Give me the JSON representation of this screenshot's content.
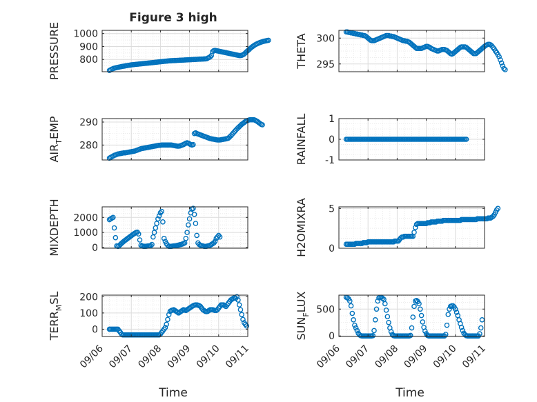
{
  "figure": {
    "title": "Figure 3 high",
    "xlabel": "Time",
    "marker_color": "#0072BD"
  },
  "chart_data": [
    {
      "type": "scatter",
      "panel": "left-1",
      "ylabel": {
        "main": "PRESSURE",
        "sub": "",
        "rest": ""
      },
      "yticks": [
        800,
        900,
        1000
      ],
      "ylim": [
        705,
        1025
      ],
      "xlim": [
        "2020-09-06",
        "2020-09-11"
      ],
      "x_start": "2020-09-06 06:00",
      "x_step_hours": 1,
      "series": [
        {
          "values": [
            715,
            720,
            725,
            729,
            732,
            735,
            737,
            739,
            741,
            743,
            745,
            747,
            748,
            750,
            752,
            753,
            755,
            756,
            758,
            759,
            760,
            761,
            762,
            763,
            764,
            765,
            766,
            767,
            768,
            769,
            770,
            771,
            772,
            773,
            774,
            775,
            776,
            777,
            778,
            779,
            780,
            781,
            782,
            783,
            784,
            785,
            786,
            787,
            788,
            789,
            790,
            790,
            791,
            791,
            792,
            792,
            793,
            793,
            794,
            794,
            795,
            795,
            796,
            796,
            797,
            797,
            798,
            798,
            799,
            799,
            800,
            800,
            801,
            801,
            802,
            802,
            803,
            803,
            804,
            804,
            805,
            810,
            815,
            820,
            830,
            860,
            868,
            870,
            868,
            866,
            864,
            862,
            860,
            858,
            856,
            854,
            852,
            850,
            848,
            846,
            844,
            842,
            840,
            838,
            836,
            834,
            832,
            830,
            830,
            832,
            836,
            842,
            850,
            860,
            868,
            876,
            885,
            893,
            900,
            907,
            913,
            918,
            923,
            927,
            931,
            934,
            937,
            940,
            942,
            944,
            946,
            948
          ]
        }
      ]
    },
    {
      "type": "scatter",
      "panel": "right-1",
      "ylabel": {
        "main": "THETA",
        "sub": "",
        "rest": ""
      },
      "yticks": [
        295,
        300
      ],
      "ylim": [
        293.5,
        301.5
      ],
      "xlim": [
        "2020-09-06",
        "2020-09-11"
      ],
      "x_start": "2020-09-06 06:00",
      "x_step_hours": 1,
      "series": [
        {
          "values": [
            301.2,
            301.2,
            301.1,
            301.1,
            301.0,
            301.0,
            300.9,
            300.9,
            300.8,
            300.8,
            300.7,
            300.7,
            300.6,
            300.6,
            300.5,
            300.5,
            300.4,
            300.2,
            300.0,
            299.8,
            299.6,
            299.5,
            299.5,
            299.5,
            299.6,
            299.7,
            299.8,
            299.9,
            300.0,
            300.1,
            300.2,
            300.3,
            300.4,
            300.5,
            300.5,
            300.5,
            300.4,
            300.4,
            300.3,
            300.3,
            300.2,
            300.1,
            300.0,
            299.9,
            299.8,
            299.7,
            299.6,
            299.5,
            299.5,
            299.4,
            299.4,
            299.3,
            299.2,
            299.0,
            298.8,
            298.6,
            298.4,
            298.2,
            298.0,
            298.0,
            298.0,
            298.0,
            298.0,
            298.1,
            298.2,
            298.3,
            298.4,
            298.4,
            298.3,
            298.2,
            298.0,
            297.9,
            297.8,
            297.7,
            297.6,
            297.5,
            297.5,
            297.6,
            297.7,
            297.8,
            297.8,
            297.8,
            297.7,
            297.6,
            297.4,
            297.2,
            297.0,
            296.9,
            297.0,
            297.2,
            297.4,
            297.6,
            297.8,
            298.0,
            298.2,
            298.3,
            298.3,
            298.3,
            298.3,
            298.2,
            298.0,
            297.8,
            297.6,
            297.4,
            297.2,
            297.0,
            297.0,
            297.0,
            297.2,
            297.4,
            297.6,
            297.8,
            298.0,
            298.2,
            298.4,
            298.6,
            298.7,
            298.8,
            298.8,
            298.7,
            298.5,
            298.2,
            297.9,
            297.5,
            297.2,
            296.8,
            296.4,
            295.8,
            295.2,
            294.6,
            294.1,
            293.9
          ]
        }
      ]
    },
    {
      "type": "scatter",
      "panel": "left-2",
      "ylabel": {
        "main": "AIR",
        "sub": "T",
        "rest": "EMP"
      },
      "yticks": [
        280,
        290
      ],
      "ylim": [
        273.5,
        291.5
      ],
      "xlim": [
        "2020-09-06",
        "2020-09-11"
      ],
      "x_start": "2020-09-06 06:00",
      "x_step_hours": 1,
      "series": [
        {
          "values": [
            274.3,
            274.6,
            274.9,
            275.2,
            275.5,
            275.7,
            275.9,
            276.1,
            276.2,
            276.3,
            276.4,
            276.5,
            276.6,
            276.6,
            276.7,
            276.8,
            276.9,
            277.0,
            277.1,
            277.2,
            277.3,
            277.4,
            277.6,
            277.8,
            278.0,
            278.2,
            278.4,
            278.5,
            278.6,
            278.7,
            278.8,
            278.9,
            279.0,
            279.1,
            279.2,
            279.3,
            279.4,
            279.5,
            279.6,
            279.7,
            279.8,
            279.9,
            279.9,
            280.0,
            280.0,
            280.0,
            280.0,
            280.0,
            280.0,
            280.0,
            280.0,
            280.0,
            279.9,
            279.8,
            279.7,
            279.6,
            279.5,
            279.5,
            279.6,
            279.8,
            280.0,
            280.2,
            280.5,
            280.8,
            281.0,
            280.8,
            280.5,
            280.2,
            280.0,
            280.2,
            285.0,
            285.3,
            285.0,
            284.8,
            284.6,
            284.4,
            284.2,
            284.0,
            283.8,
            283.6,
            283.4,
            283.2,
            283.0,
            282.8,
            282.7,
            282.6,
            282.5,
            282.4,
            282.3,
            282.2,
            282.2,
            282.2,
            282.3,
            282.4,
            282.5,
            282.6,
            282.7,
            282.8,
            283.0,
            283.5,
            284.0,
            284.6,
            285.2,
            285.8,
            286.4,
            287.0,
            287.5,
            288.0,
            288.5,
            289.0,
            289.4,
            289.8,
            290.2,
            290.5,
            290.7,
            290.9,
            291.0,
            291.0,
            291.0,
            291.0,
            290.8,
            290.5,
            290.2,
            289.8,
            289.4,
            289.0,
            288.8
          ]
        }
      ]
    },
    {
      "type": "scatter",
      "panel": "right-2",
      "ylabel": {
        "main": "RAINFALL",
        "sub": "",
        "rest": ""
      },
      "yticks": [
        -1,
        0,
        1
      ],
      "ylim": [
        -1,
        1
      ],
      "xlim": [
        "2020-09-06",
        "2020-09-11"
      ],
      "x_start": "2020-09-06 06:00",
      "x_step_hours": 1,
      "series": [
        {
          "constant": 0,
          "count": 100
        }
      ]
    },
    {
      "type": "scatter",
      "panel": "left-3",
      "ylabel": {
        "main": "MIXDEPTH",
        "sub": "",
        "rest": ""
      },
      "yticks": [
        0,
        1000,
        2000
      ],
      "ylim": [
        -50,
        2700
      ],
      "xlim": [
        "2020-09-06",
        "2020-09-11"
      ],
      "x_start": "2020-09-06 06:00",
      "x_step_hours": 1,
      "series": [
        {
          "values": [
            1850,
            1900,
            1950,
            2000,
            1300,
            650,
            100,
            70,
            120,
            200,
            280,
            350,
            420,
            480,
            540,
            600,
            660,
            720,
            780,
            840,
            900,
            950,
            1000,
            1020,
            900,
            500,
            150,
            100,
            80,
            80,
            80,
            90,
            100,
            110,
            120,
            200,
            700,
            1000,
            1300,
            1600,
            1900,
            2100,
            2300,
            2400,
            1700,
            600,
            400,
            250,
            150,
            80,
            70,
            80,
            90,
            100,
            110,
            120,
            140,
            160,
            180,
            200,
            230,
            260,
            300,
            600,
            1000,
            1500,
            1900,
            2300,
            2550,
            2600,
            2200,
            1600,
            800,
            300,
            200,
            150,
            120,
            100,
            80,
            70,
            80,
            100,
            120,
            150,
            200,
            250,
            300,
            400,
            600,
            700,
            800,
            700
          ]
        }
      ]
    },
    {
      "type": "scatter",
      "panel": "right-3",
      "ylabel": {
        "main": "H2OMIXRA",
        "sub": "",
        "rest": ""
      },
      "yticks": [
        0,
        5
      ],
      "ylim": [
        0,
        5.2
      ],
      "xlim": [
        "2020-09-06",
        "2020-09-11"
      ],
      "x_start": "2020-09-06 06:00",
      "x_step_hours": 1,
      "series": [
        {
          "values": [
            0.5,
            0.5,
            0.5,
            0.5,
            0.5,
            0.5,
            0.5,
            0.5,
            0.6,
            0.6,
            0.6,
            0.6,
            0.6,
            0.6,
            0.7,
            0.7,
            0.7,
            0.7,
            0.8,
            0.8,
            0.8,
            0.8,
            0.8,
            0.8,
            0.8,
            0.8,
            0.8,
            0.8,
            0.8,
            0.8,
            0.8,
            0.8,
            0.8,
            0.8,
            0.8,
            0.8,
            0.8,
            0.8,
            0.8,
            0.8,
            0.9,
            0.9,
            0.9,
            0.9,
            1.1,
            1.3,
            1.4,
            1.4,
            1.5,
            1.5,
            1.5,
            1.5,
            1.5,
            1.5,
            1.5,
            1.5,
            2.0,
            2.6,
            3.0,
            3.1,
            3.1,
            3.1,
            3.1,
            3.1,
            3.1,
            3.1,
            3.1,
            3.2,
            3.2,
            3.2,
            3.3,
            3.3,
            3.3,
            3.3,
            3.3,
            3.4,
            3.4,
            3.4,
            3.4,
            3.4,
            3.5,
            3.5,
            3.5,
            3.5,
            3.5,
            3.5,
            3.5,
            3.5,
            3.5,
            3.5,
            3.5,
            3.5,
            3.5,
            3.5,
            3.5,
            3.6,
            3.6,
            3.6,
            3.6,
            3.6,
            3.6,
            3.6,
            3.6,
            3.6,
            3.6,
            3.6,
            3.6,
            3.6,
            3.7,
            3.7,
            3.7,
            3.7,
            3.7,
            3.7,
            3.7,
            3.7,
            3.7,
            3.8,
            3.8,
            3.8,
            3.9,
            4.0,
            4.2,
            4.5,
            4.8,
            5.0
          ]
        }
      ]
    },
    {
      "type": "scatter",
      "panel": "left-4",
      "ylabel": {
        "main": "TERR",
        "sub": "M",
        "rest": "SL"
      },
      "yticks": [
        0,
        100,
        200
      ],
      "ylim": [
        -45,
        210
      ],
      "xlim": [
        "2020-09-06",
        "2020-09-11"
      ],
      "x_start": "2020-09-06 06:00",
      "x_step_hours": 1,
      "series": [
        {
          "values": [
            0,
            0,
            0,
            0,
            0,
            0,
            0,
            0,
            -10,
            -20,
            -30,
            -35,
            -35,
            -35,
            -35,
            -35,
            -35,
            -35,
            -35,
            -35,
            -35,
            -35,
            -35,
            -35,
            -35,
            -35,
            -35,
            -35,
            -35,
            -35,
            -35,
            -35,
            -35,
            -35,
            -35,
            -35,
            -35,
            -35,
            -35,
            -35,
            -35,
            -35,
            -30,
            -20,
            -10,
            0,
            10,
            30,
            60,
            90,
            110,
            115,
            118,
            120,
            115,
            110,
            105,
            100,
            105,
            110,
            115,
            120,
            118,
            115,
            120,
            125,
            130,
            135,
            140,
            145,
            148,
            150,
            150,
            148,
            145,
            140,
            130,
            120,
            115,
            110,
            108,
            110,
            115,
            120,
            120,
            120,
            118,
            115,
            115,
            120,
            130,
            140,
            150,
            150,
            150,
            145,
            140,
            150,
            160,
            170,
            180,
            185,
            190,
            195,
            190,
            200,
            180,
            150,
            120,
            90,
            60,
            40,
            30,
            20
          ]
        }
      ]
    },
    {
      "type": "scatter",
      "panel": "right-4",
      "ylabel": {
        "main": "SUN",
        "sub": "F",
        "rest": "LUX"
      },
      "yticks": [
        0,
        500
      ],
      "ylim": [
        -10,
        760
      ],
      "xlim": [
        "2020-09-06",
        "2020-09-11"
      ],
      "x_start": "2020-09-06 06:00",
      "x_step_hours": 1,
      "series": [
        {
          "values": [
            720,
            710,
            690,
            650,
            560,
            420,
            300,
            200,
            150,
            100,
            50,
            20,
            5,
            0,
            0,
            0,
            0,
            0,
            0,
            0,
            0,
            0,
            5,
            100,
            300,
            500,
            650,
            710,
            720,
            720,
            700,
            680,
            600,
            480,
            360,
            250,
            150,
            80,
            30,
            5,
            0,
            0,
            0,
            0,
            0,
            0,
            0,
            0,
            0,
            0,
            0,
            0,
            0,
            10,
            150,
            350,
            550,
            650,
            660,
            640,
            600,
            500,
            380,
            260,
            160,
            90,
            40,
            10,
            0,
            0,
            0,
            0,
            0,
            0,
            0,
            0,
            0,
            0,
            0,
            0,
            0,
            0,
            30,
            200,
            400,
            500,
            550,
            560,
            560,
            540,
            500,
            440,
            380,
            300,
            230,
            160,
            100,
            50,
            20,
            5,
            0,
            0,
            0,
            0,
            0,
            0,
            0,
            0,
            0,
            0,
            40,
            150,
            300
          ]
        }
      ]
    }
  ]
}
